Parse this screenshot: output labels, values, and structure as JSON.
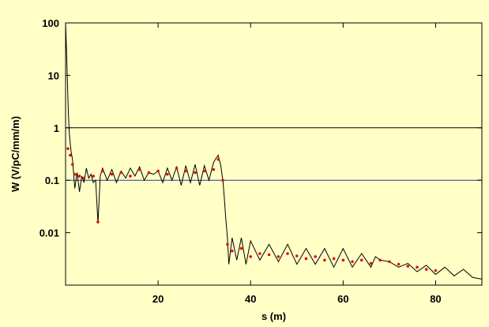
{
  "chart_data": {
    "type": "line",
    "title": "",
    "xlabel": "s (m)",
    "ylabel": "W (V/pC/mm/m)",
    "xlim": [
      0,
      90
    ],
    "ylim": [
      0.001,
      100
    ],
    "yscale": "log",
    "grid": false,
    "legend": "none",
    "x_ticks": [
      20,
      40,
      60,
      80
    ],
    "x_tick_labels": [
      "20",
      "40",
      "60",
      "80"
    ],
    "y_ticks": [
      0.01,
      0.1,
      1,
      10,
      100
    ],
    "y_tick_labels": [
      "0.01",
      "0.1",
      "1",
      "10",
      "100"
    ],
    "reference_lines": [
      {
        "y": 1,
        "color": "#000000"
      },
      {
        "y": 0.1,
        "color": "#2a3a9a"
      }
    ],
    "colors": {
      "background": "#ffffc6",
      "line": "#000000",
      "markers": "#e01010",
      "reference_blue": "#2a3a9a"
    },
    "series": [
      {
        "style": "line",
        "color": "#000000",
        "x": [
          0,
          0.2,
          0.4,
          0.6,
          0.8,
          1.0,
          1.2,
          1.5,
          2,
          2.5,
          3,
          3.5,
          4,
          4.5,
          5,
          5.5,
          6,
          6.5,
          7,
          7.5,
          8,
          9,
          10,
          11,
          12,
          13,
          14,
          15,
          16,
          17,
          18,
          19,
          20,
          21,
          22,
          23,
          24,
          25,
          26,
          27,
          28,
          29,
          30,
          31,
          32,
          32.5,
          33,
          33.5,
          34,
          34.3,
          34.6,
          35,
          35.3,
          36,
          37,
          38,
          39,
          40,
          42,
          44,
          46,
          48,
          50,
          52,
          54,
          56,
          58,
          60,
          62,
          64,
          66,
          67,
          68,
          70,
          72,
          74,
          76,
          78,
          80,
          82,
          84,
          86,
          88,
          90
        ],
        "y": [
          100,
          30,
          8,
          2,
          0.8,
          0.5,
          0.35,
          0.25,
          0.07,
          0.14,
          0.06,
          0.12,
          0.09,
          0.17,
          0.11,
          0.13,
          0.09,
          0.1,
          0.015,
          0.12,
          0.17,
          0.1,
          0.16,
          0.09,
          0.15,
          0.11,
          0.17,
          0.12,
          0.18,
          0.1,
          0.14,
          0.13,
          0.15,
          0.09,
          0.17,
          0.1,
          0.18,
          0.08,
          0.19,
          0.09,
          0.2,
          0.08,
          0.19,
          0.1,
          0.22,
          0.26,
          0.3,
          0.2,
          0.1,
          0.05,
          0.02,
          0.008,
          0.0025,
          0.008,
          0.003,
          0.008,
          0.0025,
          0.007,
          0.003,
          0.006,
          0.0028,
          0.006,
          0.0025,
          0.005,
          0.0025,
          0.005,
          0.0022,
          0.005,
          0.0022,
          0.004,
          0.0022,
          0.0035,
          0.003,
          0.0028,
          0.0022,
          0.0026,
          0.0018,
          0.0024,
          0.0016,
          0.0022,
          0.0015,
          0.002,
          0.0014,
          0.0013
        ]
      },
      {
        "style": "markers",
        "color": "#e01010",
        "x": [
          0.5,
          1,
          1.5,
          2,
          3,
          4,
          6,
          7,
          8,
          10,
          12,
          14,
          16,
          18,
          20,
          22,
          24,
          26,
          28,
          30,
          32,
          33,
          34,
          35,
          36,
          38,
          40,
          42,
          44,
          46,
          48,
          50,
          52,
          54,
          56,
          58,
          60,
          62,
          64,
          66,
          68,
          70,
          72,
          74,
          76,
          78,
          80
        ],
        "y": [
          0.4,
          0.3,
          0.2,
          0.13,
          0.12,
          0.11,
          0.12,
          0.016,
          0.15,
          0.13,
          0.14,
          0.12,
          0.16,
          0.14,
          0.15,
          0.13,
          0.17,
          0.15,
          0.14,
          0.15,
          0.16,
          0.25,
          0.1,
          0.006,
          0.0045,
          0.005,
          0.0035,
          0.004,
          0.0038,
          0.0035,
          0.004,
          0.0036,
          0.0032,
          0.0035,
          0.003,
          0.0032,
          0.003,
          0.0028,
          0.003,
          0.0026,
          0.003,
          0.0028,
          0.0025,
          0.0023,
          0.0022,
          0.002,
          0.0019
        ]
      }
    ]
  }
}
